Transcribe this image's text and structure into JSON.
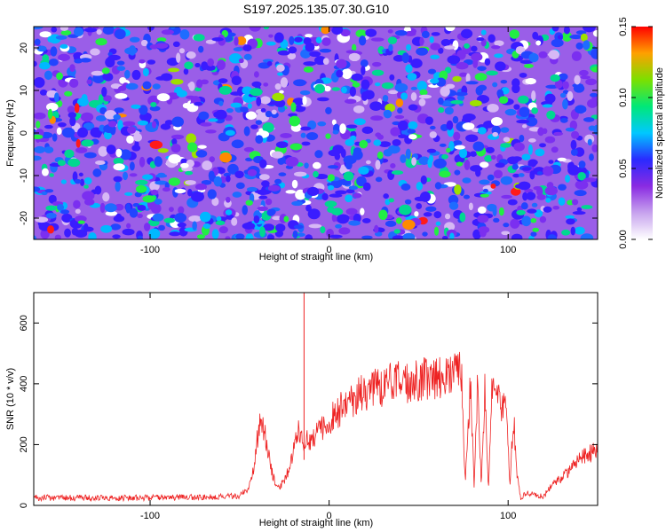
{
  "title": "S197.2025.135.07.30.G10",
  "chart_data": [
    {
      "type": "heatmap",
      "xlabel": "Height of straight line (km)",
      "ylabel": "Frequency (Hz)",
      "xlim": [
        -165,
        150
      ],
      "ylim": [
        -25,
        25
      ],
      "x_ticks": [
        -100,
        0,
        100
      ],
      "y_ticks": [
        -20,
        -10,
        0,
        10,
        20
      ],
      "colorbar": {
        "label": "Normalized spectral amplitude",
        "range": [
          0,
          0.15
        ],
        "ticks": [
          0.0,
          0.05,
          0.1,
          0.15
        ],
        "tick_labels": [
          "0.00",
          "0.05",
          "0.10",
          "0.15"
        ],
        "colors": [
          "#ffffff",
          "#c7a3ee",
          "#8a2be2",
          "#2a2aff",
          "#00c8ff",
          "#00e878",
          "#7ce000",
          "#ffa000",
          "#ff0000"
        ]
      }
    },
    {
      "type": "line",
      "xlabel": "Height of straight line (km)",
      "ylabel": "SNR (10 * v/v)",
      "xlim": [
        -165,
        150
      ],
      "ylim": [
        0,
        700
      ],
      "x_ticks": [
        -100,
        0,
        100
      ],
      "y_ticks": [
        0,
        200,
        400,
        600
      ],
      "color": "#ee2222",
      "points": [
        [
          -165,
          25
        ],
        [
          -140,
          25
        ],
        [
          -120,
          25
        ],
        [
          -100,
          25
        ],
        [
          -80,
          27
        ],
        [
          -60,
          28
        ],
        [
          -50,
          32
        ],
        [
          -45,
          55
        ],
        [
          -42,
          120
        ],
        [
          -40,
          220
        ],
        [
          -38,
          280
        ],
        [
          -36,
          240
        ],
        [
          -34,
          170
        ],
        [
          -32,
          110
        ],
        [
          -30,
          75
        ],
        [
          -28,
          60
        ],
        [
          -25,
          80
        ],
        [
          -22,
          130
        ],
        [
          -19,
          200
        ],
        [
          -17,
          240
        ],
        [
          -15,
          220
        ],
        [
          -12,
          210
        ],
        [
          -8,
          225
        ],
        [
          -4,
          250
        ],
        [
          0,
          280
        ],
        [
          5,
          310
        ],
        [
          10,
          335
        ],
        [
          15,
          355
        ],
        [
          20,
          375
        ],
        [
          30,
          395
        ],
        [
          40,
          405
        ],
        [
          50,
          415
        ],
        [
          60,
          420
        ],
        [
          70,
          425
        ],
        [
          74,
          430
        ],
        [
          76,
          80
        ],
        [
          79,
          410
        ],
        [
          81,
          70
        ],
        [
          83,
          400
        ],
        [
          85,
          75
        ],
        [
          87,
          380
        ],
        [
          89,
          60
        ],
        [
          91,
          375
        ],
        [
          93,
          350
        ],
        [
          96,
          330
        ],
        [
          99,
          325
        ],
        [
          101,
          60
        ],
        [
          103,
          300
        ],
        [
          105,
          100
        ],
        [
          107,
          20
        ],
        [
          110,
          40
        ],
        [
          115,
          35
        ],
        [
          120,
          30
        ],
        [
          125,
          70
        ],
        [
          130,
          90
        ],
        [
          135,
          120
        ],
        [
          140,
          150
        ],
        [
          145,
          170
        ],
        [
          150,
          180
        ]
      ],
      "spike": {
        "x": -14,
        "y": 700
      }
    }
  ]
}
